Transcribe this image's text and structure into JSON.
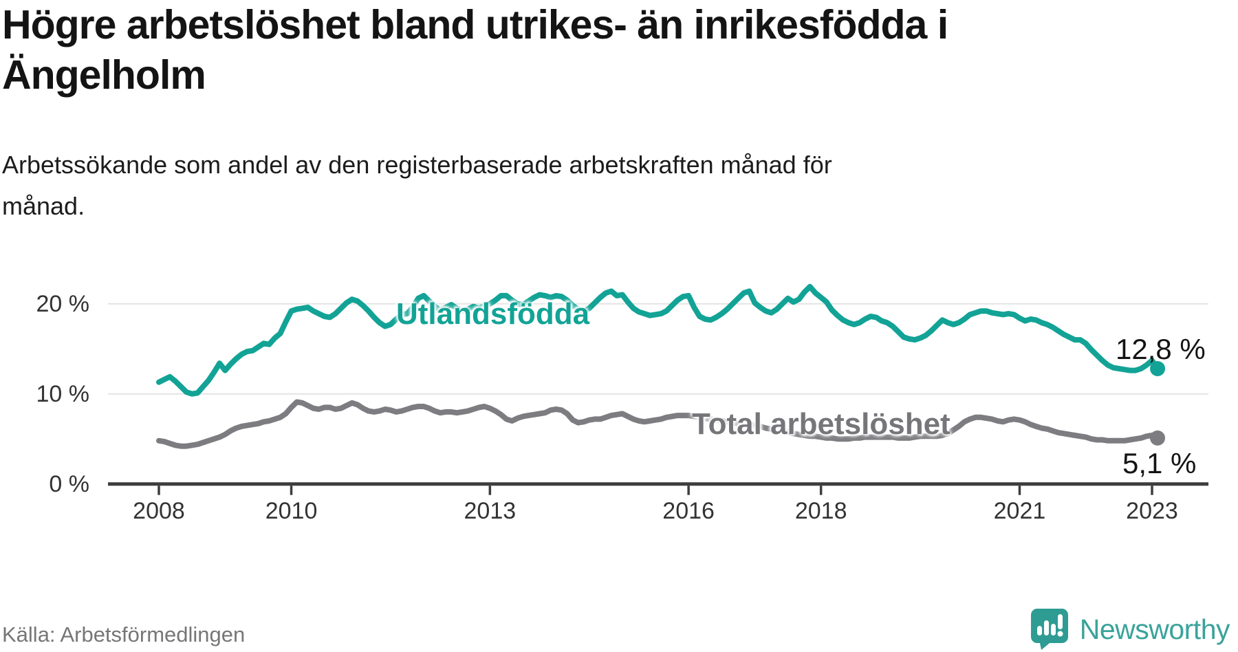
{
  "title": {
    "lines": [
      "Högre arbetslöshet bland utrikes- än inrikesfödda i",
      "Ängelholm"
    ]
  },
  "subtitle": {
    "lines": [
      "Arbetssökande som andel av den registerbaserade arbetskraften månad för",
      "månad."
    ]
  },
  "source": "Källa: Arbetsförmedlingen",
  "logo": {
    "text": "Newsworthy",
    "brand_color": "#3aa39a",
    "icon": "speech-bubble-bar-chart"
  },
  "chart_data": {
    "type": "line",
    "unit": "%",
    "x_start_month": "2008-01",
    "x_end_month": "2023-02",
    "months_per_point": 1,
    "x_ticks": [
      2008,
      2010,
      2013,
      2016,
      2018,
      2021,
      2023
    ],
    "y_ticks": [
      {
        "value": 0,
        "label": "0 %"
      },
      {
        "value": 10,
        "label": "10 %"
      },
      {
        "value": 20,
        "label": "20 %"
      }
    ],
    "ylim": [
      0,
      23.5
    ],
    "grid": "horizontal",
    "legend_position": "inline-labels",
    "series": [
      {
        "name": "Utlandsfödda",
        "color": "#12a396",
        "end_label": "12,8 %",
        "end_value": 12.8,
        "values": [
          11.3,
          11.6,
          11.9,
          11.4,
          10.8,
          10.2,
          10.0,
          10.1,
          10.8,
          11.5,
          12.4,
          13.4,
          12.6,
          13.3,
          13.9,
          14.4,
          14.7,
          14.8,
          15.2,
          15.6,
          15.5,
          16.2,
          16.7,
          18.0,
          19.2,
          19.4,
          19.5,
          19.6,
          19.2,
          18.9,
          18.6,
          18.5,
          18.9,
          19.5,
          20.1,
          20.5,
          20.3,
          19.8,
          19.2,
          18.5,
          17.9,
          17.5,
          17.7,
          18.3,
          18.8,
          18.9,
          19.6,
          20.6,
          20.9,
          20.3,
          19.7,
          19.3,
          19.6,
          19.9,
          19.5,
          19.2,
          19.4,
          19.7,
          19.5,
          19.8,
          20.0,
          20.4,
          20.9,
          20.9,
          20.4,
          20.0,
          19.9,
          20.3,
          20.7,
          21.0,
          20.9,
          20.7,
          20.9,
          20.8,
          20.4,
          19.8,
          19.4,
          19.2,
          19.5,
          20.1,
          20.7,
          21.2,
          21.4,
          20.9,
          21.0,
          20.2,
          19.5,
          19.1,
          18.9,
          18.7,
          18.8,
          18.9,
          19.2,
          19.8,
          20.4,
          20.8,
          20.9,
          19.6,
          18.6,
          18.3,
          18.2,
          18.5,
          18.9,
          19.4,
          20.0,
          20.6,
          21.2,
          21.4,
          20.1,
          19.6,
          19.2,
          19.0,
          19.4,
          20.0,
          20.6,
          20.2,
          20.5,
          21.3,
          21.9,
          21.2,
          20.7,
          20.2,
          19.3,
          18.7,
          18.2,
          17.9,
          17.7,
          17.9,
          18.3,
          18.6,
          18.5,
          18.1,
          17.9,
          17.5,
          16.9,
          16.3,
          16.1,
          16.0,
          16.2,
          16.5,
          17.0,
          17.6,
          18.2,
          17.9,
          17.7,
          17.9,
          18.3,
          18.8,
          19.0,
          19.2,
          19.2,
          19.0,
          18.9,
          18.8,
          18.9,
          18.8,
          18.4,
          18.1,
          18.3,
          18.2,
          17.9,
          17.7,
          17.4,
          17.0,
          16.6,
          16.3,
          16.0,
          16.0,
          15.6,
          14.9,
          14.3,
          13.7,
          13.2,
          12.9,
          12.8,
          12.7,
          12.6,
          12.6,
          12.8,
          13.2,
          13.7,
          12.8
        ]
      },
      {
        "name": "Total arbetslöshet",
        "color": "#7d7d81",
        "end_label": "5,1 %",
        "end_value": 5.1,
        "values": [
          4.8,
          4.7,
          4.5,
          4.3,
          4.2,
          4.2,
          4.3,
          4.4,
          4.6,
          4.8,
          5.0,
          5.2,
          5.5,
          5.9,
          6.2,
          6.4,
          6.5,
          6.6,
          6.7,
          6.9,
          7.0,
          7.2,
          7.4,
          7.8,
          8.5,
          9.1,
          9.0,
          8.7,
          8.4,
          8.3,
          8.5,
          8.5,
          8.3,
          8.4,
          8.7,
          9.0,
          8.8,
          8.4,
          8.1,
          8.0,
          8.1,
          8.3,
          8.2,
          8.0,
          8.1,
          8.3,
          8.5,
          8.6,
          8.6,
          8.4,
          8.1,
          7.9,
          8.0,
          8.0,
          7.9,
          8.0,
          8.1,
          8.3,
          8.5,
          8.6,
          8.4,
          8.1,
          7.7,
          7.2,
          7.0,
          7.3,
          7.5,
          7.6,
          7.7,
          7.8,
          7.9,
          8.2,
          8.3,
          8.2,
          7.8,
          7.1,
          6.8,
          6.9,
          7.1,
          7.2,
          7.2,
          7.4,
          7.6,
          7.7,
          7.8,
          7.5,
          7.2,
          7.0,
          6.9,
          7.0,
          7.1,
          7.2,
          7.4,
          7.5,
          7.6,
          7.6,
          7.6,
          7.5,
          7.4,
          7.3,
          7.2,
          7.1,
          7.0,
          6.9,
          6.8,
          6.7,
          6.6,
          6.6,
          6.5,
          6.4,
          6.2,
          6.1,
          6.0,
          5.9,
          5.8,
          5.6,
          5.5,
          5.4,
          5.3,
          5.3,
          5.2,
          5.1,
          5.1,
          5.0,
          5.0,
          5.0,
          5.1,
          5.1,
          5.2,
          5.2,
          5.2,
          5.2,
          5.2,
          5.2,
          5.1,
          5.1,
          5.1,
          5.2,
          5.3,
          5.3,
          5.3,
          5.3,
          5.4,
          5.6,
          6.0,
          6.4,
          6.9,
          7.2,
          7.4,
          7.4,
          7.3,
          7.2,
          7.0,
          6.9,
          7.1,
          7.2,
          7.1,
          6.9,
          6.6,
          6.4,
          6.2,
          6.1,
          5.9,
          5.7,
          5.6,
          5.5,
          5.4,
          5.3,
          5.2,
          5.0,
          4.9,
          4.9,
          4.8,
          4.8,
          4.8,
          4.8,
          4.9,
          5.0,
          5.1,
          5.3,
          5.4,
          5.1
        ]
      }
    ],
    "style": {
      "grid_color": "#e4e4e4",
      "axis_color": "#3d3d3d",
      "line_width": 8,
      "dot_radius": 11
    }
  }
}
